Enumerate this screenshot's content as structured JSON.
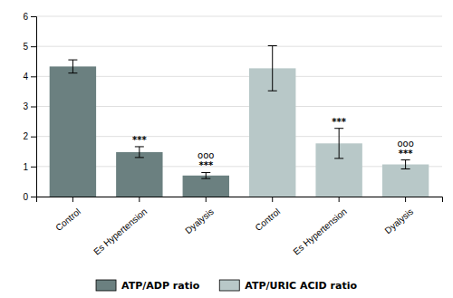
{
  "chart_data": {
    "type": "bar",
    "categories": [
      "Control",
      "Es Hypertension",
      "Dyalysis",
      "Control",
      "Es Hypertension",
      "Dyalysis"
    ],
    "series": [
      {
        "name": "ATP/ADP ratio",
        "color": "#6b8080",
        "values": [
          4.33,
          1.48,
          0.7,
          null,
          null,
          null
        ],
        "errors": [
          0.22,
          0.18,
          0.1,
          null,
          null,
          null
        ],
        "annotations": [
          null,
          "***",
          "ooo\n***",
          null,
          null,
          null
        ]
      },
      {
        "name": "ATP/URIC ACID ratio",
        "color": "#b8c8c8",
        "values": [
          null,
          null,
          null,
          4.27,
          1.77,
          1.07
        ],
        "errors": [
          null,
          null,
          null,
          0.75,
          0.5,
          0.15
        ],
        "annotations": [
          null,
          null,
          null,
          null,
          "***",
          "ooo\n***"
        ]
      }
    ],
    "ylim": [
      0,
      6
    ],
    "yticks": [
      0,
      1,
      2,
      3,
      4,
      5,
      6
    ],
    "grid": true,
    "legend": "bottom"
  }
}
